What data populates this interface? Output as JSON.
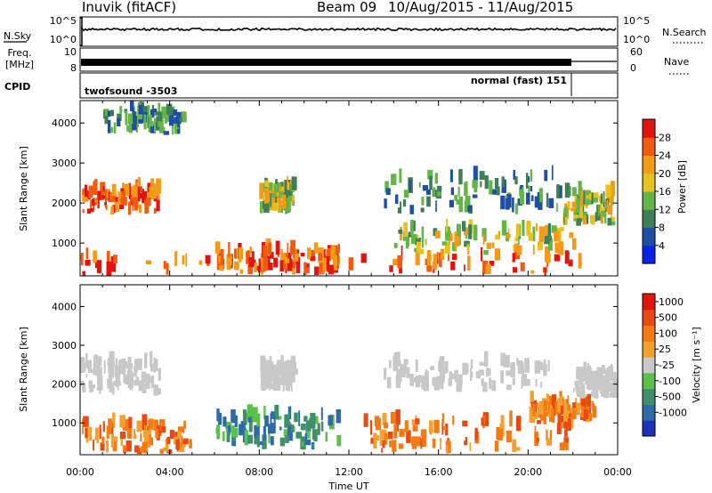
{
  "header": {
    "station": "Inuvik (fitACF)",
    "beam": "Beam 09",
    "dates": "10/Aug/2015 - 11/Aug/2015"
  },
  "status_panels": {
    "nsky_label": "N.Sky",
    "nsky_ticks": [
      "10^5",
      "10^0"
    ],
    "nsearch_label": "N.Search",
    "nsearch_ticks": [
      "10^5",
      "10^0"
    ],
    "freq_label_1": "Freq.",
    "freq_label_2": "[MHz]",
    "freq_ticks": [
      "10",
      "8"
    ],
    "nave_label": "Nave",
    "nave_ticks": [
      "60",
      "0"
    ],
    "cpid_label": "CPID",
    "cpid_1": "twofsound -3503",
    "cpid_2": "normal (fast) 151"
  },
  "chart_data": [
    {
      "type": "heatmap",
      "panel": "power",
      "ylabel": "Slant Range [km]",
      "y_ticks": [
        1000,
        2000,
        3000,
        4000
      ],
      "ylim": [
        180,
        4560
      ],
      "colorbar_label": "Power [dB]",
      "colorbar_ticks": [
        "4",
        "8",
        "12",
        "16",
        "20",
        "24",
        "28"
      ],
      "colorbar_colors": [
        "#0a22e8",
        "#1f4fa2",
        "#3f7f58",
        "#63b547",
        "#e6c21e",
        "#f39a16",
        "#f15a10",
        "#e3130f"
      ],
      "echo_regions": [
        {
          "t": [
            0.0,
            22.5
          ],
          "r": [
            180,
            600
          ],
          "level": "high"
        },
        {
          "t": [
            0.0,
            3.5
          ],
          "r": [
            1700,
            2300
          ],
          "level": "high"
        },
        {
          "t": [
            6.0,
            11.5
          ],
          "r": [
            200,
            750
          ],
          "level": "high"
        },
        {
          "t": [
            8.0,
            9.5
          ],
          "r": [
            1700,
            2400
          ],
          "level": "medium"
        },
        {
          "t": [
            13.5,
            21.5
          ],
          "r": [
            1700,
            2600
          ],
          "level": "low"
        },
        {
          "t": [
            14.0,
            22.0
          ],
          "r": [
            700,
            1300
          ],
          "level": "medium"
        },
        {
          "t": [
            21.5,
            23.8
          ],
          "r": [
            1400,
            2200
          ],
          "level": "medium"
        },
        {
          "t": [
            1.0,
            4.5
          ],
          "r": [
            3700,
            4300
          ],
          "level": "low"
        }
      ]
    },
    {
      "type": "heatmap",
      "panel": "velocity",
      "ylabel": "Slant Range [km]",
      "y_ticks": [
        1000,
        2000,
        3000,
        4000
      ],
      "ylim": [
        180,
        4560
      ],
      "colorbar_label": "Velocity [m s⁻¹]",
      "colorbar_ticks": [
        "1000",
        "500",
        "100",
        "25",
        "-25",
        "-100",
        "-500",
        "-1000"
      ],
      "colorbar_colors": [
        "#1a33b8",
        "#2d6aa8",
        "#3f8f6a",
        "#5cc04a",
        "#c8c8c8",
        "#f2a030",
        "#f47a14",
        "#e84a10",
        "#e0160c"
      ],
      "echo_regions": [
        {
          "t": [
            0.0,
            3.5
          ],
          "r": [
            1700,
            2500
          ],
          "level": "ground"
        },
        {
          "t": [
            0.0,
            5.0
          ],
          "r": [
            200,
            900
          ],
          "level": "away"
        },
        {
          "t": [
            6.0,
            11.5
          ],
          "r": [
            300,
            1100
          ],
          "level": "toward"
        },
        {
          "t": [
            8.0,
            9.5
          ],
          "r": [
            1800,
            2400
          ],
          "level": "ground"
        },
        {
          "t": [
            12.5,
            22.0
          ],
          "r": [
            200,
            1000
          ],
          "level": "away"
        },
        {
          "t": [
            13.5,
            21.0
          ],
          "r": [
            1800,
            2500
          ],
          "level": "ground"
        },
        {
          "t": [
            20.0,
            23.0
          ],
          "r": [
            1000,
            1500
          ],
          "level": "away"
        },
        {
          "t": [
            22.0,
            24.0
          ],
          "r": [
            1600,
            2300
          ],
          "level": "ground"
        }
      ]
    }
  ],
  "x_axis": {
    "ticks": [
      "00:00",
      "04:00",
      "08:00",
      "12:00",
      "16:00",
      "20:00",
      "00:00"
    ],
    "label": "Time UT"
  }
}
